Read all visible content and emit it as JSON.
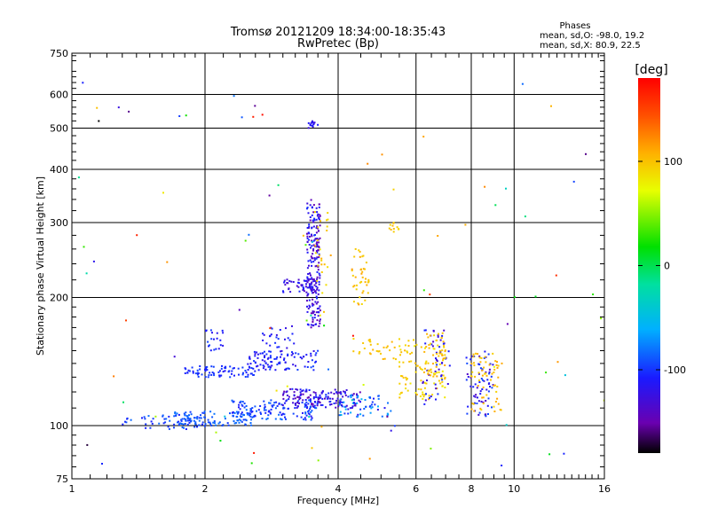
{
  "header": {
    "title": "Tromsø 20121209 18:34:00-18:35:43",
    "subtitle": "RwPretec (Bp)"
  },
  "corner": {
    "heading": "Phases",
    "line1": "mean, sd,O: -98.0, 19.2",
    "line2": "mean, sd,X:  80.9, 22.5"
  },
  "colorbar": {
    "label": "[deg]",
    "ticks": [
      "100",
      "0",
      "-100"
    ],
    "tick_values": [
      100,
      0,
      -100
    ],
    "range": [
      -180,
      180
    ]
  },
  "chart_data": {
    "type": "scatter",
    "title": "Tromsø 20121209 18:34:00-18:35:43",
    "subtitle": "RwPretec (Bp)",
    "xlabel": "Frequency [MHz]",
    "ylabel": "Stationary phase Virtual Height [km]",
    "xscale": "log",
    "yscale": "log",
    "xlim": [
      1,
      16
    ],
    "ylim": [
      75,
      750
    ],
    "xticks": [
      1,
      2,
      4,
      6,
      8,
      10,
      16
    ],
    "xtick_labels": [
      "1",
      "2",
      "4",
      "6",
      "8",
      "10",
      "16"
    ],
    "yticks": [
      75,
      100,
      200,
      300,
      400,
      500,
      600,
      750
    ],
    "ytick_labels": [
      "75",
      "100",
      "200",
      "300",
      "400",
      "500",
      "600",
      "750"
    ],
    "grid": true,
    "color_variable": "phase [deg]",
    "point_groups": [
      {
        "x_range": [
          1.3,
          2.0
        ],
        "y_range": [
          98,
          106
        ],
        "phase_range": [
          -110,
          -80
        ],
        "count": 60
      },
      {
        "x_range": [
          1.7,
          2.6
        ],
        "y_range": [
          100,
          108
        ],
        "phase_range": [
          -100,
          -80
        ],
        "count": 90
      },
      {
        "x_range": [
          2.3,
          3.6
        ],
        "y_range": [
          103,
          115
        ],
        "phase_range": [
          -115,
          -80
        ],
        "count": 130
      },
      {
        "x_range": [
          3.0,
          4.5
        ],
        "y_range": [
          110,
          122
        ],
        "phase_range": [
          -150,
          -100
        ],
        "count": 150
      },
      {
        "x_range": [
          4.0,
          5.3
        ],
        "y_range": [
          105,
          118
        ],
        "phase_range": [
          -120,
          -50
        ],
        "count": 60
      },
      {
        "x_range": [
          1.8,
          2.6
        ],
        "y_range": [
          130,
          138
        ],
        "phase_range": [
          -115,
          -95
        ],
        "count": 80
      },
      {
        "x_range": [
          2.5,
          3.6
        ],
        "y_range": [
          135,
          150
        ],
        "phase_range": [
          -125,
          -95
        ],
        "count": 100
      },
      {
        "x_range": [
          2.0,
          2.2
        ],
        "y_range": [
          150,
          168
        ],
        "phase_range": [
          -120,
          -95
        ],
        "count": 20
      },
      {
        "x_range": [
          2.7,
          3.2
        ],
        "y_range": [
          150,
          172
        ],
        "phase_range": [
          -130,
          -100
        ],
        "count": 25
      },
      {
        "x_range": [
          3.0,
          3.6
        ],
        "y_range": [
          205,
          222
        ],
        "phase_range": [
          -140,
          -105
        ],
        "count": 50
      },
      {
        "x_range": [
          3.4,
          3.65
        ],
        "y_range": [
          170,
          340
        ],
        "phase_range": [
          -150,
          -100
        ],
        "count": 200
      },
      {
        "x_range": [
          3.4,
          3.6
        ],
        "y_range": [
          500,
          520
        ],
        "phase_range": [
          -130,
          -110
        ],
        "count": 15
      },
      {
        "x_range": [
          3.5,
          3.8
        ],
        "y_range": [
          180,
          320
        ],
        "phase_range": [
          80,
          110
        ],
        "count": 25
      },
      {
        "x_range": [
          4.3,
          4.7
        ],
        "y_range": [
          190,
          260
        ],
        "phase_range": [
          90,
          120
        ],
        "count": 40
      },
      {
        "x_range": [
          4.3,
          6.0
        ],
        "y_range": [
          140,
          160
        ],
        "phase_range": [
          90,
          110
        ],
        "count": 40
      },
      {
        "x_range": [
          5.5,
          7.0
        ],
        "y_range": [
          115,
          155
        ],
        "phase_range": [
          80,
          110
        ],
        "count": 80
      },
      {
        "x_range": [
          6.2,
          7.2
        ],
        "y_range": [
          112,
          168
        ],
        "phase_range": [
          -140,
          -100
        ],
        "count": 50
      },
      {
        "x_range": [
          6.3,
          7.0
        ],
        "y_range": [
          125,
          165
        ],
        "phase_range": [
          85,
          115
        ],
        "count": 50
      },
      {
        "x_range": [
          7.8,
          9.0
        ],
        "y_range": [
          105,
          150
        ],
        "phase_range": [
          -140,
          -90
        ],
        "count": 70
      },
      {
        "x_range": [
          8.0,
          9.4
        ],
        "y_range": [
          108,
          148
        ],
        "phase_range": [
          90,
          115
        ],
        "count": 60
      },
      {
        "x_range": [
          5.2,
          5.5
        ],
        "y_range": [
          285,
          300
        ],
        "phase_range": [
          85,
          110
        ],
        "count": 12
      },
      {
        "x_range": [
          1.0,
          16.0
        ],
        "y_range": [
          80,
          650
        ],
        "phase_range": [
          -180,
          180
        ],
        "count": 90
      }
    ]
  }
}
